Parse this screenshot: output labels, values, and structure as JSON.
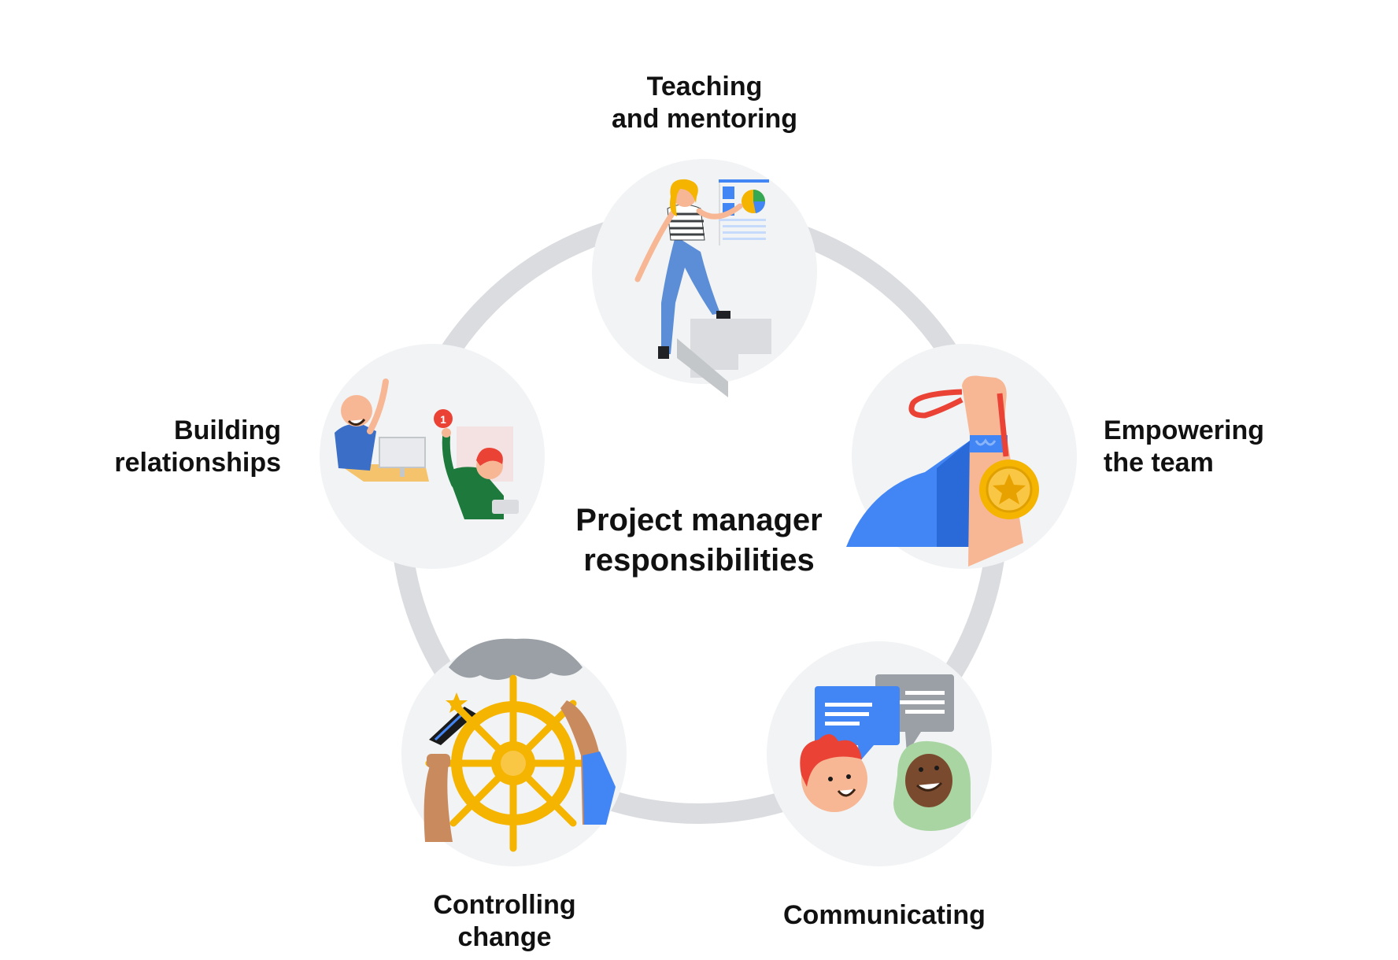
{
  "diagram": {
    "center_title": [
      "Project manager",
      "responsibilities"
    ],
    "nodes": [
      {
        "id": "teaching",
        "label": [
          "Teaching",
          "and mentoring"
        ],
        "icon": "teaching-illustration-icon"
      },
      {
        "id": "empowering",
        "label": [
          "Empowering",
          "the team"
        ],
        "icon": "medal-cape-illustration-icon"
      },
      {
        "id": "communicating",
        "label": [
          "Communicating"
        ],
        "icon": "chat-bubbles-illustration-icon"
      },
      {
        "id": "controlling",
        "label": [
          "Controlling",
          "change"
        ],
        "icon": "ship-wheel-illustration-icon"
      },
      {
        "id": "building",
        "label": [
          "Building",
          "relationships"
        ],
        "icon": "high-five-illustration-icon"
      }
    ],
    "notification_count": "1",
    "colors": {
      "ring": "#dadce0",
      "circle": "#f1f3f4",
      "blue": "#4285f4",
      "yellow": "#f4b400",
      "red": "#ea4335",
      "green": "#1e7a3c",
      "gray": "#9aa0a6",
      "skin": "#f7b795"
    }
  }
}
